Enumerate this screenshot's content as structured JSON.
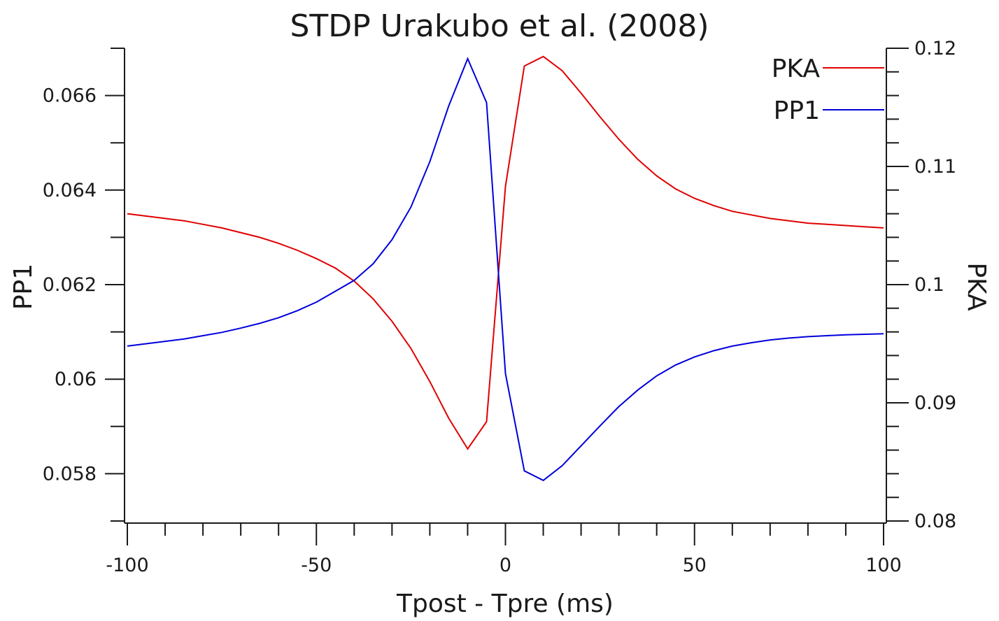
{
  "chart_data": {
    "type": "line",
    "title": "STDP Urakubo et al. (2008)",
    "xlabel": "Tpost - Tpre (ms)",
    "ylabel_left": "PP1",
    "ylabel_right": "PKA",
    "xlim": [
      -100,
      100
    ],
    "ylim_left": [
      0.057,
      0.067
    ],
    "ylim_right": [
      0.08,
      0.12
    ],
    "x_ticks": [
      "-100",
      "-50",
      "0",
      "50",
      "100"
    ],
    "y_left_ticks": [
      "0.058",
      "0.06",
      "0.062",
      "0.064",
      "0.066"
    ],
    "y_right_ticks": [
      "0.08",
      "0.09",
      "0.1",
      "0.11",
      "0.12"
    ],
    "grid": false,
    "legend_position": "top-right",
    "x": [
      -100,
      -95,
      -90,
      -85,
      -80,
      -75,
      -70,
      -65,
      -60,
      -55,
      -50,
      -45,
      -40,
      -35,
      -30,
      -25,
      -20,
      -15,
      -10,
      -5,
      0,
      5,
      10,
      15,
      20,
      25,
      30,
      35,
      40,
      45,
      50,
      55,
      60,
      65,
      70,
      75,
      80,
      85,
      90,
      95,
      100
    ],
    "series": [
      {
        "name": "PKA",
        "axis": "right",
        "color": "#e00000",
        "values": [
          0.106,
          0.1058,
          0.1056,
          0.1054,
          0.1051,
          0.1048,
          0.1044,
          0.104,
          0.1035,
          0.1029,
          0.1022,
          0.1014,
          0.1003,
          0.0988,
          0.0969,
          0.0946,
          0.0918,
          0.0887,
          0.0861,
          0.0884,
          0.1083,
          0.1185,
          0.1193,
          0.1181,
          0.1162,
          0.1142,
          0.1123,
          0.1106,
          0.1092,
          0.1081,
          0.1073,
          0.1067,
          0.1062,
          0.1059,
          0.1056,
          0.1054,
          0.1052,
          0.1051,
          0.105,
          0.1049,
          0.1048
        ]
      },
      {
        "name": "PP1",
        "axis": "left",
        "color": "#0000dd",
        "values": [
          0.0607,
          0.06075,
          0.0608,
          0.06085,
          0.06092,
          0.06099,
          0.06108,
          0.06118,
          0.0613,
          0.06145,
          0.06163,
          0.06186,
          0.06209,
          0.06244,
          0.06295,
          0.06364,
          0.0646,
          0.06578,
          0.06678,
          0.06585,
          0.06012,
          0.05806,
          0.05786,
          0.05817,
          0.05859,
          0.05901,
          0.05942,
          0.05977,
          0.06007,
          0.0603,
          0.06047,
          0.0606,
          0.0607,
          0.06077,
          0.06083,
          0.06087,
          0.0609,
          0.06092,
          0.06094,
          0.06095,
          0.06096
        ]
      }
    ]
  }
}
